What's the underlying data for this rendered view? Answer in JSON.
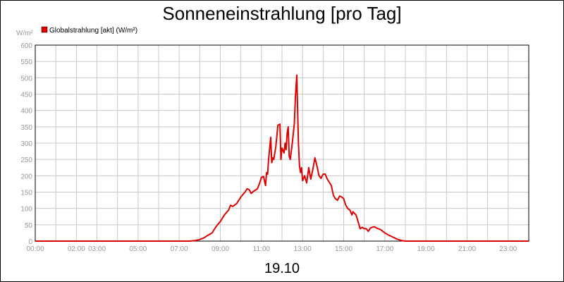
{
  "chart_data": {
    "type": "line",
    "title": "Sonneneinstrahlung [pro Tag]",
    "ylabel": "W/m²",
    "date_label": "19.10",
    "ylim": [
      0,
      600
    ],
    "xlim_hours": [
      0,
      24
    ],
    "yticks": [
      "0",
      "50",
      "100",
      "150",
      "200",
      "250",
      "300",
      "350",
      "400",
      "450",
      "500",
      "550",
      "600"
    ],
    "xticks": [
      {
        "h": 0,
        "label": "00:00"
      },
      {
        "h": 2,
        "label": "02:00"
      },
      {
        "h": 3,
        "label": "03:00"
      },
      {
        "h": 5,
        "label": "05:00"
      },
      {
        "h": 7,
        "label": "07:00"
      },
      {
        "h": 9,
        "label": "09:00"
      },
      {
        "h": 11,
        "label": "11:00"
      },
      {
        "h": 13,
        "label": "13:00"
      },
      {
        "h": 15,
        "label": "15:00"
      },
      {
        "h": 17,
        "label": "17:00"
      },
      {
        "h": 19,
        "label": "19:00"
      },
      {
        "h": 21,
        "label": "21:00"
      },
      {
        "h": 23,
        "label": "23:00"
      }
    ],
    "grid": true,
    "legend_position": "top-left",
    "series": [
      {
        "name": "Globalstrahlung [akt] (W/m²)",
        "color": "#e00000",
        "points": [
          [
            0,
            0
          ],
          [
            7.5,
            0
          ],
          [
            7.8,
            2
          ],
          [
            8.0,
            5
          ],
          [
            8.2,
            10
          ],
          [
            8.4,
            18
          ],
          [
            8.6,
            25
          ],
          [
            8.8,
            45
          ],
          [
            9.0,
            60
          ],
          [
            9.2,
            80
          ],
          [
            9.4,
            95
          ],
          [
            9.5,
            110
          ],
          [
            9.6,
            106
          ],
          [
            9.8,
            115
          ],
          [
            10.0,
            135
          ],
          [
            10.2,
            150
          ],
          [
            10.3,
            160
          ],
          [
            10.4,
            158
          ],
          [
            10.5,
            146
          ],
          [
            10.6,
            152
          ],
          [
            10.8,
            160
          ],
          [
            10.9,
            175
          ],
          [
            11.0,
            195
          ],
          [
            11.1,
            198
          ],
          [
            11.2,
            170
          ],
          [
            11.25,
            210
          ],
          [
            11.3,
            205
          ],
          [
            11.35,
            250
          ],
          [
            11.45,
            318
          ],
          [
            11.5,
            240
          ],
          [
            11.55,
            255
          ],
          [
            11.6,
            250
          ],
          [
            11.7,
            290
          ],
          [
            11.8,
            355
          ],
          [
            11.9,
            358
          ],
          [
            11.95,
            250
          ],
          [
            12.0,
            285
          ],
          [
            12.1,
            270
          ],
          [
            12.15,
            300
          ],
          [
            12.2,
            280
          ],
          [
            12.25,
            330
          ],
          [
            12.3,
            350
          ],
          [
            12.35,
            260
          ],
          [
            12.4,
            250
          ],
          [
            12.5,
            300
          ],
          [
            12.6,
            360
          ],
          [
            12.65,
            440
          ],
          [
            12.72,
            508
          ],
          [
            12.8,
            300
          ],
          [
            12.85,
            230
          ],
          [
            12.9,
            210
          ],
          [
            12.95,
            225
          ],
          [
            13.0,
            185
          ],
          [
            13.1,
            200
          ],
          [
            13.2,
            178
          ],
          [
            13.3,
            225
          ],
          [
            13.4,
            190
          ],
          [
            13.5,
            220
          ],
          [
            13.6,
            255
          ],
          [
            13.7,
            230
          ],
          [
            13.8,
            200
          ],
          [
            13.9,
            192
          ],
          [
            14.0,
            205
          ],
          [
            14.1,
            205
          ],
          [
            14.2,
            190
          ],
          [
            14.3,
            180
          ],
          [
            14.4,
            170
          ],
          [
            14.5,
            140
          ],
          [
            14.6,
            130
          ],
          [
            14.7,
            125
          ],
          [
            14.8,
            138
          ],
          [
            14.9,
            135
          ],
          [
            15.0,
            130
          ],
          [
            15.1,
            110
          ],
          [
            15.2,
            100
          ],
          [
            15.3,
            95
          ],
          [
            15.4,
            80
          ],
          [
            15.45,
            90
          ],
          [
            15.6,
            80
          ],
          [
            15.7,
            60
          ],
          [
            15.8,
            38
          ],
          [
            15.9,
            42
          ],
          [
            16.0,
            38
          ],
          [
            16.1,
            38
          ],
          [
            16.2,
            30
          ],
          [
            16.3,
            40
          ],
          [
            16.4,
            43
          ],
          [
            16.5,
            44
          ],
          [
            16.6,
            40
          ],
          [
            16.8,
            35
          ],
          [
            17.0,
            25
          ],
          [
            17.2,
            18
          ],
          [
            17.4,
            12
          ],
          [
            17.6,
            6
          ],
          [
            17.8,
            2
          ],
          [
            18.0,
            0
          ],
          [
            24,
            0
          ]
        ]
      }
    ]
  }
}
